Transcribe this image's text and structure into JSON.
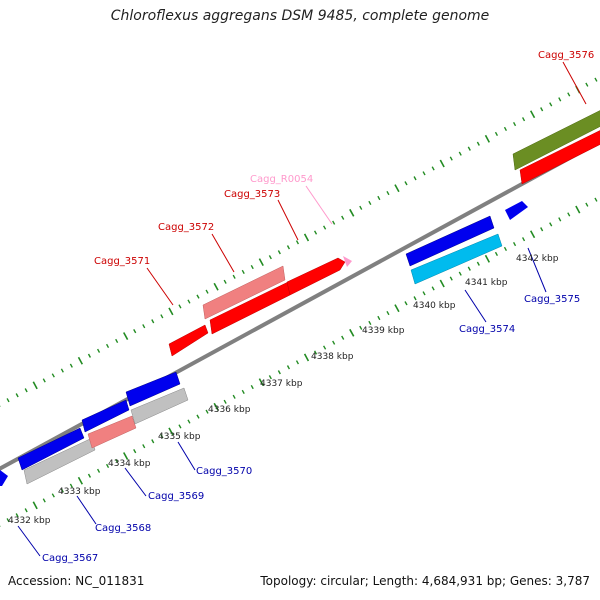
{
  "title": "Chloroflexus aggregans DSM 9485, complete genome",
  "accession_text": "Accession: NC_011831",
  "summary_text": "Topology: circular; Length: 4,684,931 bp; Genes: 3,787",
  "colors": {
    "gene_red": "#ff0000",
    "gene_pink": "#f08080",
    "gene_light_pink": "#ff99cc",
    "gene_blue": "#0000ee",
    "gene_cyan": "#00bbee",
    "gene_gray": "#c0c0c0",
    "gene_olive": "#6b8e23",
    "tick_green": "#228b22",
    "backbone": "#808080",
    "label_red": "#cc0000",
    "label_blue": "#0000aa"
  },
  "ticks": [
    "4332 kbp",
    "4333 kbp",
    "4334 kbp",
    "4335 kbp",
    "4336 kbp",
    "4337 kbp",
    "4338 kbp",
    "4339 kbp",
    "4340 kbp",
    "4341 kbp",
    "4342 kbp"
  ],
  "genes_forward": [
    {
      "label": "Cagg_3571",
      "color": "red",
      "label_color": "red"
    },
    {
      "label": "Cagg_3572",
      "color": "pink",
      "label_color": "red"
    },
    {
      "label": "Cagg_3573",
      "color": "red",
      "label_color": "red"
    },
    {
      "label": "Cagg_R0054",
      "color": "light_pink",
      "label_color": "light_pink"
    },
    {
      "label": "Cagg_3576",
      "color": "red",
      "label_color": "red"
    }
  ],
  "genes_reverse": [
    {
      "label": "Cagg_3567",
      "color": "blue",
      "label_color": "blue"
    },
    {
      "label": "Cagg_3568",
      "color": "gray",
      "label_color": "blue"
    },
    {
      "label": "Cagg_3569",
      "color": "pink",
      "label_color": "blue"
    },
    {
      "label": "Cagg_3570",
      "color": "gray",
      "label_color": "blue"
    },
    {
      "label": "Cagg_3574",
      "color": "cyan",
      "label_color": "blue"
    },
    {
      "label": "Cagg_3575",
      "color": "blue",
      "label_color": "blue"
    }
  ]
}
